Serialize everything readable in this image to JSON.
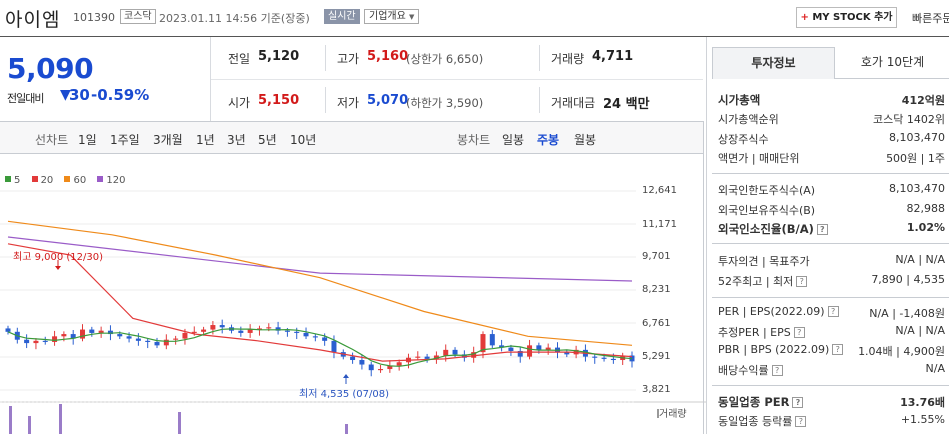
{
  "header": {
    "name": "아이엠",
    "code": "101390",
    "market": "코스닥",
    "timestamp": "2023.01.11 14:56 기준(장중)",
    "realtime": "실시간",
    "company_overview": "기업개요",
    "mystock": "MY STOCK 추가",
    "quick_order": "빠른주문"
  },
  "price": {
    "current": "5,090",
    "change_label": "전일대비",
    "change_value": "30",
    "change_pct": "-0.59%"
  },
  "quote": {
    "prev_close_label": "전일",
    "prev_close": "5,120",
    "high_label": "고가",
    "high": "5,160",
    "upper_limit": "(상한가 6,650)",
    "volume_label": "거래량",
    "volume": "4,711",
    "open_label": "시가",
    "open": "5,150",
    "low_label": "저가",
    "low": "5,070",
    "lower_limit": "(하한가 3,590)",
    "trade_value_label": "거래대금",
    "trade_value": "24 백만"
  },
  "range_bar": {
    "line_label": "선차트",
    "line_items": [
      "1일",
      "1주일",
      "3개월",
      "1년",
      "3년",
      "5년",
      "10년"
    ],
    "candle_label": "봉차트",
    "candle_items": [
      "일봉",
      "주봉",
      "월봉"
    ],
    "active": "주봉"
  },
  "chart_data": {
    "type": "candlestick",
    "period": "weekly",
    "ma_legend": [
      {
        "name": "5",
        "color": "#3a9a3a"
      },
      {
        "name": "20",
        "color": "#e23a3a"
      },
      {
        "name": "60",
        "color": "#ef8a1a"
      },
      {
        "name": "120",
        "color": "#9a5cc8"
      }
    ],
    "y_ticks": [
      "12,641",
      "11,171",
      "9,701",
      "8,231",
      "6,761",
      "5,291",
      "3,821"
    ],
    "ylim": [
      3821,
      12641
    ],
    "max_annotation": "최고 9,000 (12/30)",
    "min_annotation": "최저 4,535 (07/08)",
    "volume_label": "거래량",
    "closes": [
      6400,
      6050,
      5900,
      6000,
      5950,
      6200,
      6300,
      6100,
      6500,
      6350,
      6450,
      6300,
      6200,
      6100,
      6000,
      5950,
      5800,
      6050,
      6100,
      6350,
      6400,
      6500,
      6700,
      6600,
      6450,
      6350,
      6500,
      6550,
      6600,
      6450,
      6400,
      6350,
      6200,
      6150,
      6000,
      5500,
      5300,
      5150,
      4950,
      4700,
      4750,
      4900,
      5050,
      5250,
      5300,
      5200,
      5350,
      5600,
      5400,
      5250,
      5500,
      6300,
      5800,
      5700,
      5550,
      5300,
      5800,
      5600,
      5700,
      5500,
      5400,
      5600,
      5300,
      5250,
      5200,
      5150,
      5350,
      5090
    ],
    "ma120": [
      10600,
      9000,
      8650
    ],
    "ma60": [
      11300,
      10700,
      9800,
      8800,
      7300,
      6200,
      5800
    ],
    "ma20": [
      10300,
      9800,
      7000,
      6300,
      6000,
      5600,
      5100,
      5200,
      5500,
      5500,
      5300
    ]
  },
  "sidebar": {
    "tab_invest": "투자정보",
    "tab_quote": "호가 10단계",
    "rows": [
      {
        "k": "시가총액",
        "v": "412억원"
      },
      {
        "k": "시가총액순위",
        "v": "코스닥 1402위"
      },
      {
        "k": "상장주식수",
        "v": "8,103,470"
      },
      {
        "k": "액면가 | 매매단위",
        "v": "500원 | 1주"
      },
      {
        "k": "외국인한도주식수(A)",
        "v": "8,103,470"
      },
      {
        "k": "외국인보유주식수(B)",
        "v": "82,988"
      },
      {
        "k": "외국인소진율(B/A)",
        "v": "1.02%"
      },
      {
        "k": "투자의견 | 목표주가",
        "v": "N/A | N/A"
      },
      {
        "k": "52주최고 | 최저",
        "v": "7,890 | 4,535"
      },
      {
        "k": "PER | EPS(2022.09)",
        "v": "N/A | -1,408원"
      },
      {
        "k": "추정PER | EPS",
        "v": "N/A | N/A"
      },
      {
        "k": "PBR | BPS (2022.09)",
        "v": "1.04배 | 4,900원"
      },
      {
        "k": "배당수익률",
        "v": "N/A"
      },
      {
        "k": "동일업종 PER",
        "v": "13.76배"
      },
      {
        "k": "동일업종 등락률",
        "v": "+1.55%"
      }
    ]
  }
}
